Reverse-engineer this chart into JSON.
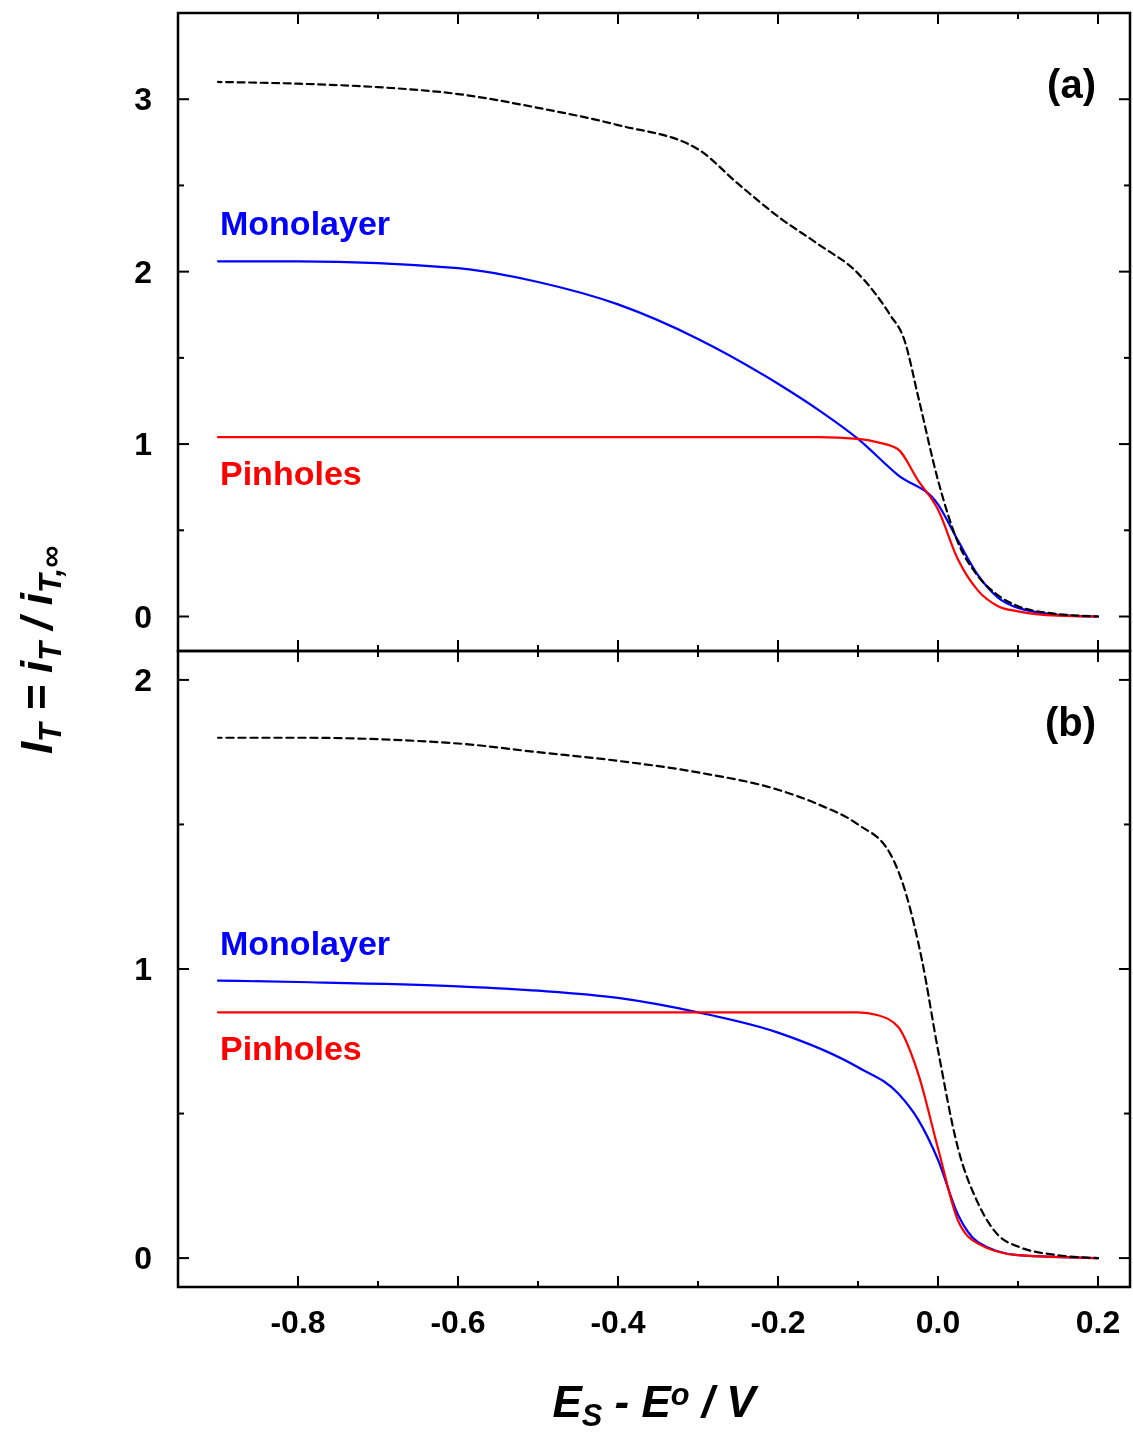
{
  "chart_data": [
    {
      "type": "line",
      "title": "(a)",
      "ylabel": "I$_{T}$ = i$_{T}$ / i$_{T,∞}$",
      "tick_labels": "y",
      "xlim": [
        -0.95,
        0.24
      ],
      "xticks": [
        -0.8,
        {
          "value": -0.7,
          "label": null
        },
        -0.6,
        {
          "value": -0.5,
          "label": null
        },
        -0.4,
        {
          "value": -0.3,
          "label": null
        },
        -0.2,
        {
          "value": -0.1,
          "label": null
        },
        0.0,
        {
          "value": 0.1,
          "label": null
        },
        0.2
      ],
      "ylim": [
        -0.2,
        3.5
      ],
      "yticks": [
        0,
        {
          "value": 0.5,
          "label": null
        },
        1,
        {
          "value": 1.5,
          "label": null
        },
        2,
        {
          "value": 2.5,
          "label": null
        },
        3
      ],
      "series": [
        {
          "color": "#000000",
          "line_style": "dashed",
          "x": [
            -0.9,
            -0.8,
            -0.7,
            -0.6,
            -0.5,
            -0.4,
            -0.3,
            -0.25,
            -0.2,
            -0.15,
            -0.1,
            -0.06,
            -0.0425,
            -0.024,
            0,
            0.024,
            0.049,
            0.076,
            0.1,
            0.14,
            0.2
          ],
          "values": [
            3.1,
            3.09,
            3.07,
            3.03,
            2.95,
            2.85,
            2.71,
            2.51,
            2.32,
            2.16,
            1.99,
            1.75,
            1.61,
            1.26,
            0.79,
            0.44,
            0.24,
            0.12,
            0.06,
            0.02,
            0
          ]
        },
        {
          "name": "Monolayer",
          "color": "#0000ff",
          "line_style": "solid",
          "x": [
            -0.9,
            -0.8,
            -0.6,
            -0.5,
            -0.4,
            -0.3,
            -0.2,
            -0.15,
            -0.1,
            -0.05,
            0,
            0.025,
            0.05,
            0.075,
            0.1,
            0.15,
            0.2
          ],
          "values": [
            2.06,
            2.06,
            2.02,
            1.94,
            1.81,
            1.61,
            1.35,
            1.2,
            1.03,
            0.82,
            0.65,
            0.44,
            0.24,
            0.11,
            0.05,
            0.01,
            0
          ]
        },
        {
          "name": "Pinholes",
          "color": "#ff0000",
          "line_style": "solid",
          "x": [
            -0.9,
            -0.5,
            -0.15,
            -0.1,
            -0.075,
            -0.05,
            -0.025,
            0,
            0.025,
            0.05,
            0.075,
            0.1,
            0.15,
            0.2
          ],
          "values": [
            1.04,
            1.04,
            1.04,
            1.03,
            1.01,
            0.97,
            0.79,
            0.62,
            0.33,
            0.15,
            0.06,
            0.03,
            0.005,
            0
          ]
        }
      ]
    },
    {
      "type": "line",
      "title": "(b)",
      "xlabel": "E$_{S}$ - E$^{o}$ / V",
      "xlim": [
        -0.95,
        0.24
      ],
      "xticks": [
        -0.8,
        {
          "value": -0.7,
          "label": null
        },
        -0.6,
        {
          "value": -0.5,
          "label": null
        },
        -0.4,
        {
          "value": -0.3,
          "label": null
        },
        -0.2,
        {
          "value": -0.1,
          "label": null
        },
        {
          "value": 0.0,
          "label": "0.0"
        },
        {
          "value": 0.1,
          "label": null
        },
        0.2
      ],
      "ylim": [
        -0.1,
        2.1
      ],
      "yticks": [
        0,
        {
          "value": 0.5,
          "label": null
        },
        1,
        {
          "value": 1.5,
          "label": null
        },
        2
      ],
      "series": [
        {
          "color": "#000000",
          "line_style": "dashed",
          "x": [
            -0.9,
            -0.8,
            -0.6,
            -0.5,
            -0.4,
            -0.3,
            -0.2,
            -0.15,
            -0.1,
            -0.06,
            -0.04,
            -0.02,
            0,
            0.025,
            0.05,
            0.075,
            0.1,
            0.15,
            0.2
          ],
          "values": [
            1.8,
            1.8,
            1.78,
            1.75,
            1.72,
            1.68,
            1.62,
            1.57,
            1.5,
            1.4,
            1.26,
            1.03,
            0.72,
            0.38,
            0.19,
            0.08,
            0.04,
            0.01,
            0
          ]
        },
        {
          "name": "Monolayer",
          "color": "#0000ff",
          "line_style": "solid",
          "x": [
            -0.9,
            -0.8,
            -0.6,
            -0.5,
            -0.4,
            -0.3,
            -0.2,
            -0.1,
            -0.05,
            -0.025,
            0,
            0.025,
            0.05,
            0.1,
            0.2
          ],
          "values": [
            0.96,
            0.955,
            0.94,
            0.925,
            0.9,
            0.85,
            0.78,
            0.66,
            0.57,
            0.48,
            0.34,
            0.15,
            0.055,
            0.01,
            0
          ]
        },
        {
          "name": "Pinholes",
          "color": "#ff0000",
          "line_style": "solid",
          "x": [
            -0.9,
            -0.5,
            -0.1,
            -0.075,
            -0.05,
            -0.025,
            0,
            0.025,
            0.05,
            0.1,
            0.2
          ],
          "values": [
            0.85,
            0.85,
            0.85,
            0.84,
            0.8,
            0.64,
            0.38,
            0.13,
            0.05,
            0.01,
            0
          ]
        }
      ]
    }
  ]
}
